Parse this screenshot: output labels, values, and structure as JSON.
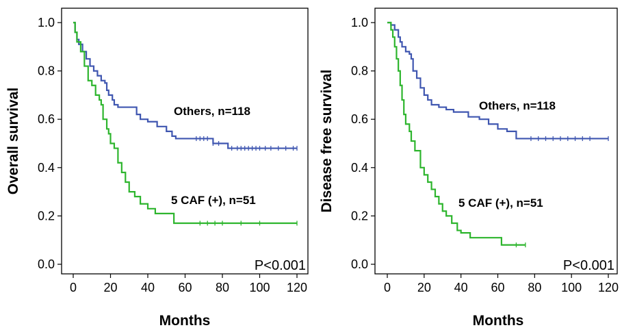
{
  "chart_data": [
    {
      "type": "line",
      "step": true,
      "xlabel": "Months",
      "ylabel": "Overall survival",
      "xlim": [
        0,
        120
      ],
      "ylim": [
        0,
        1.0
      ],
      "xticks": [
        "0",
        "20",
        "40",
        "60",
        "80",
        "100",
        "120"
      ],
      "yticks": [
        "0.0",
        "0.2",
        "0.4",
        "0.6",
        "0.8",
        "1.0"
      ],
      "grid": false,
      "annotations": [
        "Others, n=118",
        "5 CAF (+), n=51",
        "P<0.001"
      ],
      "series": [
        {
          "name": "Others, n=118",
          "color": "#3f56b0",
          "x": [
            0,
            1,
            2,
            3,
            5,
            7,
            9,
            11,
            13,
            15,
            17,
            18,
            19,
            21,
            22,
            24,
            34,
            36,
            40,
            45,
            50,
            53,
            55,
            62,
            75,
            83,
            120
          ],
          "y": [
            1.0,
            0.96,
            0.93,
            0.91,
            0.88,
            0.85,
            0.82,
            0.8,
            0.78,
            0.76,
            0.75,
            0.72,
            0.7,
            0.68,
            0.66,
            0.65,
            0.62,
            0.6,
            0.59,
            0.57,
            0.55,
            0.53,
            0.52,
            0.52,
            0.5,
            0.48,
            0.48
          ],
          "censor_x": [
            66,
            68,
            70,
            72,
            75,
            78,
            85,
            88,
            90,
            92,
            94,
            96,
            98,
            100,
            103,
            106,
            110,
            114,
            118,
            120
          ]
        },
        {
          "name": "5 CAF (+), n=51",
          "color": "#2db52d",
          "x": [
            0,
            1,
            2,
            4,
            6,
            8,
            10,
            12,
            14,
            15,
            16,
            18,
            19,
            20,
            22,
            24,
            26,
            28,
            30,
            33,
            36,
            40,
            44,
            48,
            54,
            120
          ],
          "y": [
            1.0,
            0.96,
            0.92,
            0.88,
            0.82,
            0.76,
            0.74,
            0.7,
            0.68,
            0.66,
            0.6,
            0.56,
            0.54,
            0.5,
            0.48,
            0.42,
            0.38,
            0.34,
            0.3,
            0.28,
            0.25,
            0.23,
            0.21,
            0.21,
            0.17,
            0.17
          ],
          "censor_x": [
            68,
            72,
            76,
            80,
            90,
            100,
            120
          ]
        }
      ]
    },
    {
      "type": "line",
      "step": true,
      "xlabel": "Months",
      "ylabel": "Disease free survival",
      "xlim": [
        0,
        120
      ],
      "ylim": [
        0,
        1.0
      ],
      "xticks": [
        "0",
        "20",
        "40",
        "60",
        "80",
        "100",
        "120"
      ],
      "yticks": [
        "0.0",
        "0.2",
        "0.4",
        "0.6",
        "0.8",
        "1.0"
      ],
      "grid": false,
      "annotations": [
        "Others, n=118",
        "5 CAF (+), n=51",
        "P<0.001"
      ],
      "series": [
        {
          "name": "Others, n=118",
          "color": "#3f56b0",
          "x": [
            0,
            2,
            4,
            6,
            7,
            8,
            10,
            12,
            13,
            14,
            16,
            18,
            20,
            22,
            24,
            28,
            30,
            32,
            36,
            40,
            44,
            50,
            55,
            60,
            65,
            70,
            120
          ],
          "y": [
            1.0,
            0.99,
            0.97,
            0.94,
            0.92,
            0.9,
            0.88,
            0.87,
            0.85,
            0.8,
            0.77,
            0.73,
            0.7,
            0.68,
            0.66,
            0.65,
            0.65,
            0.64,
            0.63,
            0.63,
            0.61,
            0.6,
            0.58,
            0.56,
            0.55,
            0.52,
            0.52
          ],
          "censor_x": [
            78,
            82,
            86,
            90,
            94,
            98,
            102,
            106,
            110,
            120
          ]
        },
        {
          "name": "5 CAF (+), n=51",
          "color": "#2db52d",
          "x": [
            0,
            2,
            3,
            4,
            5,
            6,
            7,
            8,
            9,
            10,
            12,
            13,
            15,
            18,
            20,
            22,
            24,
            26,
            28,
            30,
            32,
            35,
            38,
            40,
            45,
            50,
            62,
            75
          ],
          "y": [
            1.0,
            0.97,
            0.94,
            0.9,
            0.85,
            0.8,
            0.74,
            0.68,
            0.62,
            0.58,
            0.55,
            0.51,
            0.47,
            0.4,
            0.37,
            0.34,
            0.31,
            0.28,
            0.25,
            0.22,
            0.2,
            0.17,
            0.14,
            0.13,
            0.11,
            0.11,
            0.08,
            0.08
          ],
          "censor_x": [
            70,
            75
          ]
        }
      ]
    }
  ]
}
